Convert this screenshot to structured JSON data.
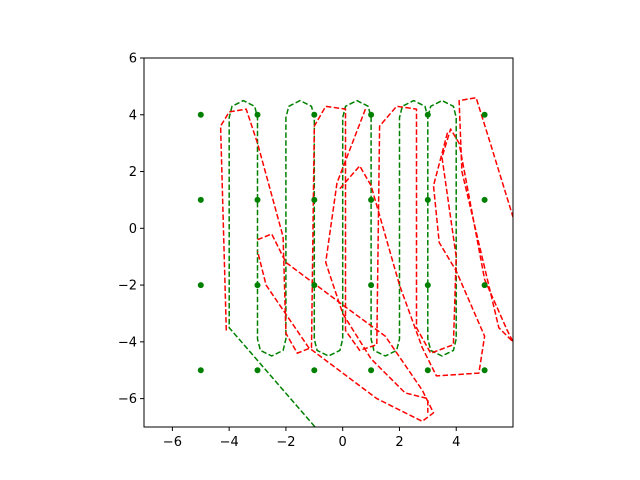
{
  "chart_data": {
    "type": "line",
    "title": "",
    "xlabel": "",
    "ylabel": "",
    "xlim": [
      -7,
      6
    ],
    "ylim": [
      -7,
      6
    ],
    "grid": false,
    "xticks": [
      -6,
      -4,
      -2,
      0,
      2,
      4
    ],
    "yticks": [
      -6,
      -4,
      -2,
      0,
      2,
      4,
      6
    ],
    "colors": {
      "waypoints": "#008000",
      "planned_path": "#008000",
      "actual_path": "#ff0000"
    },
    "series": [
      {
        "type": "scatter",
        "color": "#008000",
        "points": [
          [
            -5,
            4
          ],
          [
            -5,
            1
          ],
          [
            -5,
            -2
          ],
          [
            -5,
            -5
          ],
          [
            -3,
            4
          ],
          [
            -3,
            1
          ],
          [
            -3,
            -2
          ],
          [
            -3,
            -5
          ],
          [
            -1,
            4
          ],
          [
            -1,
            1
          ],
          [
            -1,
            -2
          ],
          [
            -1,
            -5
          ],
          [
            1,
            4
          ],
          [
            1,
            1
          ],
          [
            1,
            -2
          ],
          [
            1,
            -5
          ],
          [
            3,
            4
          ],
          [
            3,
            1
          ],
          [
            3,
            -2
          ],
          [
            3,
            -5
          ],
          [
            5,
            4
          ],
          [
            5,
            1
          ],
          [
            5,
            -2
          ],
          [
            5,
            -5
          ]
        ]
      },
      {
        "type": "line",
        "style": "dashed",
        "color": "#008000",
        "points": [
          [
            -0.8,
            -7.2
          ],
          [
            -4.0,
            -3.5
          ],
          [
            -4.0,
            3.9
          ],
          [
            -3.9,
            4.3
          ],
          [
            -3.5,
            4.5
          ],
          [
            -3.1,
            4.3
          ],
          [
            -3.0,
            3.9
          ],
          [
            -3.0,
            -3.9
          ],
          [
            -2.9,
            -4.3
          ],
          [
            -2.5,
            -4.5
          ],
          [
            -2.1,
            -4.3
          ],
          [
            -2.0,
            -3.9
          ],
          [
            -2.0,
            3.9
          ],
          [
            -1.9,
            4.3
          ],
          [
            -1.5,
            4.5
          ],
          [
            -1.1,
            4.3
          ],
          [
            -1.0,
            3.9
          ],
          [
            -1.0,
            -3.9
          ],
          [
            -0.9,
            -4.3
          ],
          [
            -0.5,
            -4.5
          ],
          [
            -0.1,
            -4.3
          ],
          [
            0.0,
            -3.9
          ],
          [
            0.0,
            3.9
          ],
          [
            0.1,
            4.3
          ],
          [
            0.5,
            4.5
          ],
          [
            0.9,
            4.3
          ],
          [
            1.0,
            3.9
          ],
          [
            1.0,
            -3.9
          ],
          [
            1.1,
            -4.3
          ],
          [
            1.5,
            -4.5
          ],
          [
            1.9,
            -4.3
          ],
          [
            2.0,
            -3.9
          ],
          [
            2.0,
            3.9
          ],
          [
            2.1,
            4.3
          ],
          [
            2.5,
            4.5
          ],
          [
            2.9,
            4.3
          ],
          [
            3.0,
            3.9
          ],
          [
            3.0,
            -3.9
          ],
          [
            3.1,
            -4.3
          ],
          [
            3.5,
            -4.5
          ],
          [
            3.9,
            -4.3
          ],
          [
            4.0,
            -3.9
          ],
          [
            4.0,
            3.9
          ],
          [
            3.9,
            4.3
          ],
          [
            3.5,
            4.5
          ],
          [
            3.1,
            4.3
          ],
          [
            3.0,
            3.9
          ]
        ]
      },
      {
        "type": "line",
        "style": "dashed",
        "color": "#ff0000",
        "points": [
          [
            -4.1,
            -3.6
          ],
          [
            -4.3,
            3.6
          ],
          [
            -4.0,
            4.1
          ],
          [
            -3.4,
            4.2
          ],
          [
            -3.0,
            3.0
          ],
          [
            -2.1,
            -0.3
          ],
          [
            -2.0,
            -3.7
          ],
          [
            -1.6,
            -4.4
          ],
          [
            -1.1,
            -4.2
          ],
          [
            -1.0,
            3.6
          ],
          [
            -0.6,
            4.3
          ],
          [
            0.1,
            4.2
          ],
          [
            0.1,
            -3.6
          ],
          [
            0.6,
            -4.3
          ],
          [
            1.2,
            -4.1
          ],
          [
            1.3,
            3.6
          ],
          [
            1.9,
            4.3
          ],
          [
            2.6,
            4.2
          ],
          [
            2.6,
            -3.5
          ],
          [
            3.1,
            -4.4
          ],
          [
            3.9,
            -4.1
          ],
          [
            4.0,
            -1.0
          ],
          [
            3.5,
            2.5
          ],
          [
            3.8,
            3.5
          ],
          [
            4.1,
            3.0
          ],
          [
            5.0,
            -1.8
          ],
          [
            5.8,
            -3.6
          ],
          [
            6.0,
            -4.0
          ],
          [
            5.5,
            -3.5
          ],
          [
            4.2,
            2.0
          ],
          [
            4.1,
            4.5
          ],
          [
            4.7,
            4.6
          ],
          [
            5.2,
            3.0
          ],
          [
            6.0,
            0.4
          ]
        ]
      },
      {
        "type": "line",
        "style": "dashed",
        "color": "#ff0000",
        "points": [
          [
            -3.0,
            -0.4
          ],
          [
            -2.5,
            -0.2
          ],
          [
            -2.0,
            -1.2
          ],
          [
            0.0,
            -2.7
          ],
          [
            1.5,
            -3.8
          ],
          [
            2.8,
            -5.7
          ],
          [
            3.2,
            -6.5
          ],
          [
            2.8,
            -6.8
          ],
          [
            1.2,
            -6.0
          ],
          [
            -1.2,
            -4.2
          ],
          [
            -2.7,
            -2.0
          ],
          [
            -3.0,
            -0.8
          ]
        ]
      },
      {
        "type": "line",
        "style": "dashed",
        "color": "#ff0000",
        "points": [
          [
            -0.1,
            1.4
          ],
          [
            0.6,
            2.2
          ],
          [
            1.0,
            1.5
          ],
          [
            2.0,
            -2.0
          ],
          [
            2.8,
            -4.2
          ],
          [
            3.3,
            -5.2
          ],
          [
            4.8,
            -5.1
          ],
          [
            5.0,
            -3.8
          ],
          [
            4.0,
            -1.5
          ],
          [
            3.4,
            -0.5
          ],
          [
            3.2,
            1.5
          ],
          [
            3.7,
            3.4
          ]
        ]
      },
      {
        "type": "line",
        "style": "dashed",
        "color": "#ff0000",
        "points": [
          [
            0.8,
            4.2
          ],
          [
            -0.2,
            1.6
          ],
          [
            -0.6,
            -1.2
          ],
          [
            0.0,
            -3.0
          ],
          [
            1.0,
            -4.6
          ],
          [
            2.2,
            -5.8
          ],
          [
            3.0,
            -6.0
          ],
          [
            3.0,
            -6.5
          ]
        ]
      }
    ]
  }
}
